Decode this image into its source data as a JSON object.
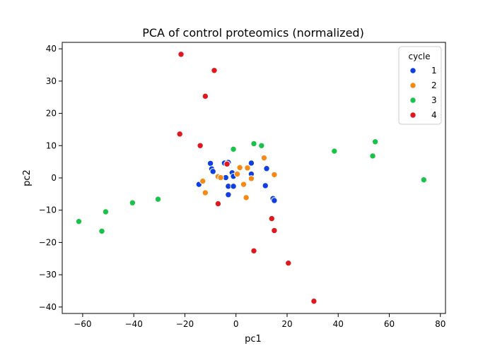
{
  "chart_data": {
    "type": "scatter",
    "title": "PCA of control proteomics (normalized)",
    "xlabel": "pc1",
    "ylabel": "pc2",
    "xlim": [
      -68,
      82
    ],
    "ylim": [
      -42,
      42
    ],
    "xticks": [
      -60,
      -40,
      -20,
      0,
      20,
      40,
      60,
      80
    ],
    "yticks": [
      -40,
      -30,
      -20,
      -10,
      0,
      10,
      20,
      30,
      40
    ],
    "grid": false,
    "legend": {
      "title": "cycle",
      "placement": "top-right"
    },
    "series": [
      {
        "name": "1",
        "color": "#0f3fe0",
        "points": [
          [
            -10,
            4.5
          ],
          [
            -9.5,
            2.8
          ],
          [
            -9,
            2
          ],
          [
            -14.5,
            -2
          ],
          [
            -4.5,
            4.6
          ],
          [
            -3,
            4.8
          ],
          [
            -4,
            0.1
          ],
          [
            -1.5,
            1.6
          ],
          [
            -1,
            0.5
          ],
          [
            -3,
            -2.6
          ],
          [
            -1,
            -2.6
          ],
          [
            -3,
            -5.2
          ],
          [
            6,
            4.6
          ],
          [
            6,
            1.2
          ],
          [
            12,
            2.9
          ],
          [
            11.5,
            -2.4
          ],
          [
            14.5,
            -6.4
          ],
          [
            15,
            -7
          ]
        ]
      },
      {
        "name": "2",
        "color": "#f58a14",
        "points": [
          [
            -13,
            -1
          ],
          [
            -12,
            -4.6
          ],
          [
            -7,
            0.4
          ],
          [
            -6,
            0.1
          ],
          [
            0.5,
            1.2
          ],
          [
            1.5,
            3.2
          ],
          [
            3,
            -2
          ],
          [
            4,
            -6.1
          ],
          [
            4.5,
            3.1
          ],
          [
            6,
            -0.2
          ],
          [
            11,
            6.2
          ],
          [
            15,
            1
          ]
        ]
      },
      {
        "name": "3",
        "color": "#1ac24a",
        "points": [
          [
            -61.5,
            -13.5
          ],
          [
            -52.5,
            -16.5
          ],
          [
            -51,
            -10.5
          ],
          [
            -40.5,
            -7.7
          ],
          [
            -30.5,
            -6.6
          ],
          [
            -1,
            8.9
          ],
          [
            7,
            10.6
          ],
          [
            10,
            10
          ],
          [
            38.5,
            8.3
          ],
          [
            53.5,
            6.8
          ],
          [
            54.5,
            11.2
          ],
          [
            73.5,
            -0.6
          ]
        ]
      },
      {
        "name": "4",
        "color": "#e0181e",
        "points": [
          [
            -21.5,
            38.3
          ],
          [
            -8.5,
            33.3
          ],
          [
            -12,
            25.3
          ],
          [
            -22,
            13.6
          ],
          [
            -14,
            10
          ],
          [
            -3.5,
            4.3
          ],
          [
            -7,
            -8
          ],
          [
            7,
            -22.6
          ],
          [
            14,
            -12.6
          ],
          [
            15,
            -16.3
          ],
          [
            20.5,
            -26.4
          ],
          [
            30.5,
            -38.2
          ]
        ]
      }
    ]
  }
}
